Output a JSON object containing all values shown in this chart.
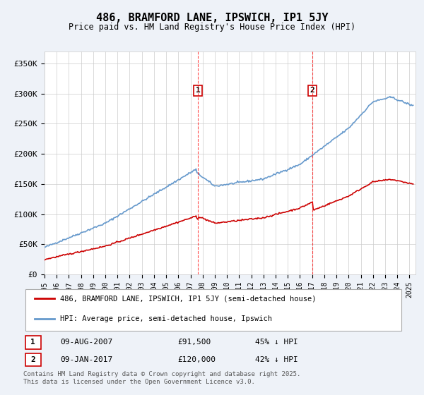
{
  "title": "486, BRAMFORD LANE, IPSWICH, IP1 5JY",
  "subtitle": "Price paid vs. HM Land Registry's House Price Index (HPI)",
  "ylabel_ticks": [
    "£0",
    "£50K",
    "£100K",
    "£150K",
    "£200K",
    "£250K",
    "£300K",
    "£350K"
  ],
  "ytick_values": [
    0,
    50000,
    100000,
    150000,
    200000,
    250000,
    300000,
    350000
  ],
  "ylim": [
    0,
    370000
  ],
  "xlim_start": 1995.0,
  "xlim_end": 2025.5,
  "hpi_color": "#6699cc",
  "price_color": "#cc0000",
  "marker1_date": 2007.6,
  "marker1_label": "1",
  "marker1_price": 91500,
  "marker2_date": 2017.03,
  "marker2_label": "2",
  "marker2_price": 120000,
  "legend_line1": "486, BRAMFORD LANE, IPSWICH, IP1 5JY (semi-detached house)",
  "legend_line2": "HPI: Average price, semi-detached house, Ipswich",
  "table_row1": [
    "1",
    "09-AUG-2007",
    "£91,500",
    "45% ↓ HPI"
  ],
  "table_row2": [
    "2",
    "09-JAN-2017",
    "£120,000",
    "42% ↓ HPI"
  ],
  "footer": "Contains HM Land Registry data © Crown copyright and database right 2025.\nThis data is licensed under the Open Government Licence v3.0.",
  "background_color": "#eef2f8",
  "plot_bg_color": "#ffffff"
}
